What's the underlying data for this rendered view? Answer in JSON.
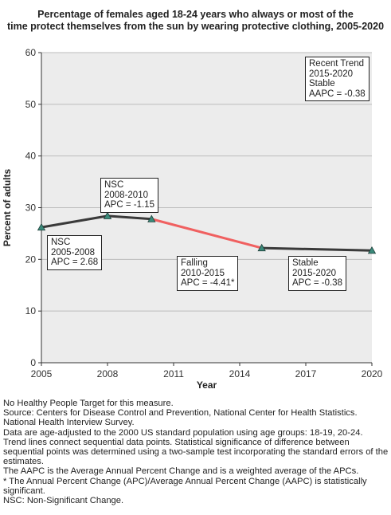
{
  "chart_data": {
    "type": "line",
    "title": [
      "Percentage of females aged 18-24 years who always or most of the",
      "time protect themselves from the sun by wearing protective clothing, 2005-2020"
    ],
    "xlabel": "Year",
    "ylabel": "Percent of adults",
    "xlim": [
      2005,
      2020
    ],
    "ylim": [
      0,
      60
    ],
    "x_ticks": [
      "2005",
      "2008",
      "2011",
      "2014",
      "2017",
      "2020"
    ],
    "y_ticks": [
      "0",
      "10",
      "20",
      "30",
      "40",
      "50",
      "60"
    ],
    "grid": "horizontal",
    "points": [
      {
        "x": 2005,
        "y": 26.2
      },
      {
        "x": 2008,
        "y": 28.4
      },
      {
        "x": 2010,
        "y": 27.8
      },
      {
        "x": 2015,
        "y": 22.2
      },
      {
        "x": 2020,
        "y": 21.7
      }
    ],
    "segments": [
      {
        "from": 2005,
        "to": 2008,
        "trend": "NSC",
        "color": "#3a3a3a"
      },
      {
        "from": 2008,
        "to": 2010,
        "trend": "NSC",
        "color": "#3a3a3a"
      },
      {
        "from": 2010,
        "to": 2015,
        "trend": "Falling",
        "color": "#f06060"
      },
      {
        "from": 2015,
        "to": 2020,
        "trend": "Stable",
        "color": "#3a3a3a"
      }
    ],
    "marker_color": "#3a8a7a",
    "annotations": [
      {
        "id": "nsc1",
        "lines": [
          "NSC",
          "2005-2008",
          "APC =  2.68"
        ]
      },
      {
        "id": "nsc2",
        "lines": [
          "NSC",
          "2008-2010",
          "APC = -1.15"
        ]
      },
      {
        "id": "falling",
        "lines": [
          "Falling",
          "2010-2015",
          "APC = -4.41*"
        ]
      },
      {
        "id": "stable",
        "lines": [
          "Stable",
          "2015-2020",
          "APC = -0.38"
        ]
      },
      {
        "id": "recent",
        "lines": [
          "Recent Trend",
          "2015-2020",
          "Stable",
          "AAPC = -0.38"
        ]
      }
    ]
  },
  "footnotes": [
    "No Healthy People Target for this measure.",
    "Source: Centers for Disease Control and Prevention, National Center for Health Statistics. National Health Interview Survey.",
    "Data are age-adjusted to the 2000 US standard population using age groups: 18-19, 20-24.",
    "Trend lines connect sequential data points. Statistical significance of difference between sequential points was determined using a two-sample test incorporating the standard errors of the estimates.",
    "The AAPC is the Average Annual Percent Change and is a weighted average of the APCs.",
    "* The Annual Percent Change (APC)/Average Annual Percent Change (AAPC) is statistically significant.",
    "NSC: Non-Significant Change."
  ]
}
